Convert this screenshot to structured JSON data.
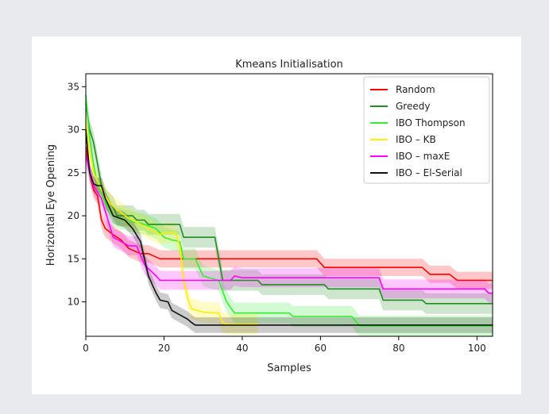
{
  "chart_data": {
    "type": "line",
    "title": "Kmeans Initialisation",
    "xlabel": "Samples",
    "ylabel": "Horizontal Eye Opening",
    "xlim": [
      0,
      104
    ],
    "ylim": [
      6,
      36.5
    ],
    "xticks": [
      0,
      20,
      40,
      60,
      80,
      100
    ],
    "yticks": [
      10,
      15,
      20,
      25,
      30,
      35
    ],
    "grid": false,
    "legend_position": "top-right",
    "series": [
      {
        "name": "Random",
        "color": "#ff0000",
        "band": 1.0,
        "points": [
          [
            0,
            28
          ],
          [
            1,
            25
          ],
          [
            2,
            23
          ],
          [
            3,
            22.3
          ],
          [
            4,
            19.5
          ],
          [
            5,
            18.5
          ],
          [
            7,
            17.8
          ],
          [
            9,
            17.2
          ],
          [
            11,
            16.2
          ],
          [
            14,
            15.6
          ],
          [
            16,
            15.6
          ],
          [
            19,
            15.0
          ],
          [
            59,
            15.0
          ],
          [
            61,
            14.0
          ],
          [
            86,
            14.0
          ],
          [
            88,
            13.2
          ],
          [
            93,
            13.2
          ],
          [
            95,
            12.5
          ],
          [
            104,
            12.5
          ]
        ]
      },
      {
        "name": "Greedy",
        "color": "#228b22",
        "band": 1.2,
        "points": [
          [
            0,
            33
          ],
          [
            1,
            30
          ],
          [
            2,
            28.5
          ],
          [
            3,
            26
          ],
          [
            4,
            23.5
          ],
          [
            5,
            22
          ],
          [
            7,
            21
          ],
          [
            8,
            20
          ],
          [
            12,
            20
          ],
          [
            13,
            19.5
          ],
          [
            15,
            19.5
          ],
          [
            16,
            19
          ],
          [
            24,
            19
          ],
          [
            25,
            17.5
          ],
          [
            33,
            17.5
          ],
          [
            35,
            12.5
          ],
          [
            44,
            12.5
          ],
          [
            45,
            12
          ],
          [
            61,
            12
          ],
          [
            62,
            11.5
          ],
          [
            75,
            11.5
          ],
          [
            76,
            10.2
          ],
          [
            86,
            10.2
          ],
          [
            87,
            9.8
          ],
          [
            104,
            9.8
          ]
        ]
      },
      {
        "name": "IBO Thompson",
        "color": "#33ee33",
        "band": 1.2,
        "points": [
          [
            0,
            34
          ],
          [
            1,
            29
          ],
          [
            2,
            26
          ],
          [
            3,
            23.5
          ],
          [
            5,
            21.5
          ],
          [
            7,
            20
          ],
          [
            9,
            19.6
          ],
          [
            12,
            19.3
          ],
          [
            15,
            19
          ],
          [
            18,
            18.5
          ],
          [
            20,
            17.5
          ],
          [
            22,
            17.2
          ],
          [
            24,
            17
          ],
          [
            25,
            15
          ],
          [
            28,
            15
          ],
          [
            30,
            13
          ],
          [
            34,
            12.5
          ],
          [
            36,
            10
          ],
          [
            38,
            8.7
          ],
          [
            52,
            8.7
          ],
          [
            53,
            8.3
          ],
          [
            68,
            8.3
          ],
          [
            70,
            7.2
          ],
          [
            104,
            7.2
          ]
        ]
      },
      {
        "name": "IBO – KB",
        "color": "#ffee00",
        "band": 1.2,
        "points": [
          [
            0,
            31
          ],
          [
            1,
            27.5
          ],
          [
            2,
            25
          ],
          [
            4,
            23
          ],
          [
            6,
            21.5
          ],
          [
            8,
            20.7
          ],
          [
            11,
            19.7
          ],
          [
            14,
            19
          ],
          [
            16,
            18.5
          ],
          [
            19,
            17.8
          ],
          [
            20,
            18
          ],
          [
            23,
            18
          ],
          [
            24,
            16.5
          ],
          [
            25,
            12.5
          ],
          [
            26,
            10.5
          ],
          [
            27,
            9.2
          ],
          [
            30,
            8.8
          ],
          [
            34,
            8.7
          ],
          [
            35,
            7.6
          ],
          [
            36,
            7.4
          ],
          [
            44,
            7.4
          ]
        ]
      },
      {
        "name": "IBO – maxE",
        "color": "#ff00ff",
        "band": 1.1,
        "points": [
          [
            0,
            27
          ],
          [
            1,
            25
          ],
          [
            2,
            23.5
          ],
          [
            4,
            22
          ],
          [
            6,
            19
          ],
          [
            7,
            17.5
          ],
          [
            9,
            17
          ],
          [
            11,
            16.5
          ],
          [
            13,
            16.5
          ],
          [
            15,
            14.3
          ],
          [
            18,
            13
          ],
          [
            19,
            12.5
          ],
          [
            37,
            12.5
          ],
          [
            38,
            13
          ],
          [
            40,
            12.8
          ],
          [
            75,
            12.8
          ],
          [
            76,
            11.5
          ],
          [
            102,
            11.5
          ],
          [
            103,
            11
          ],
          [
            104,
            11
          ]
        ]
      },
      {
        "name": "IBO – El-Serial",
        "color": "#111111",
        "band": 0.9,
        "points": [
          [
            0,
            30
          ],
          [
            1,
            25
          ],
          [
            2,
            23.7
          ],
          [
            3,
            23.5
          ],
          [
            4,
            23.5
          ],
          [
            5,
            22
          ],
          [
            6,
            21
          ],
          [
            7,
            20
          ],
          [
            10,
            19.5
          ],
          [
            12,
            18.5
          ],
          [
            14,
            17
          ],
          [
            15,
            15
          ],
          [
            16,
            13
          ],
          [
            17,
            12
          ],
          [
            18,
            11
          ],
          [
            19,
            10.2
          ],
          [
            21,
            10
          ],
          [
            22,
            9
          ],
          [
            24,
            8.5
          ],
          [
            26,
            8
          ],
          [
            27,
            7.6
          ],
          [
            28,
            7.3
          ],
          [
            104,
            7.3
          ]
        ]
      }
    ]
  }
}
